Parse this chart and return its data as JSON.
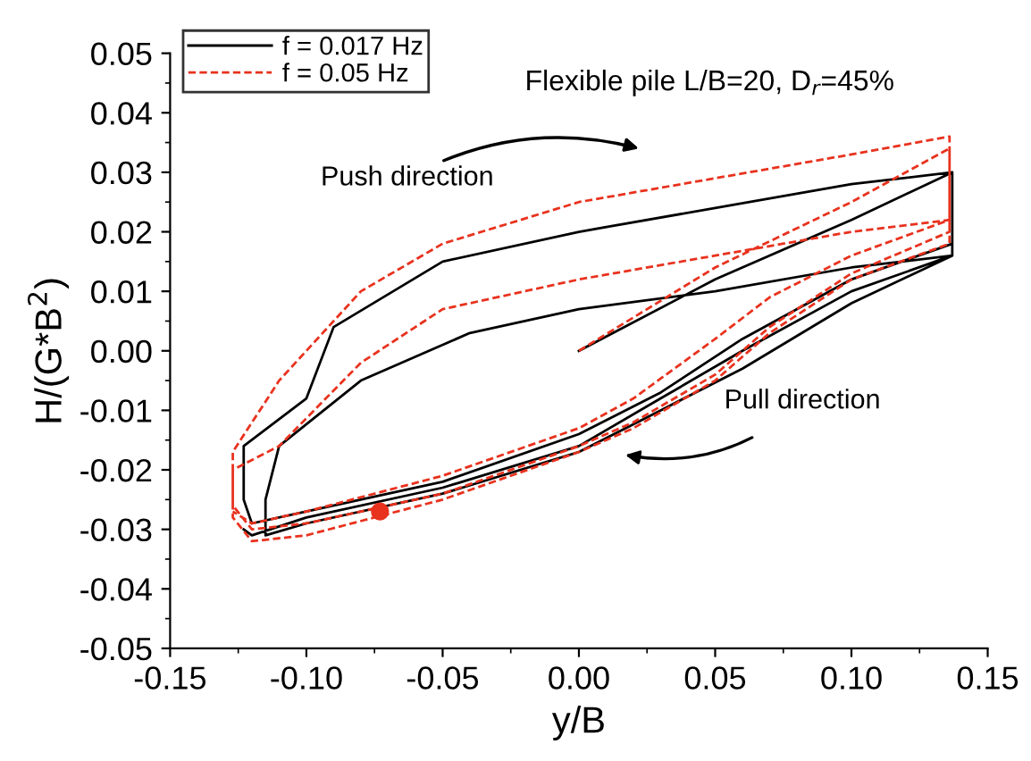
{
  "chart_data": {
    "type": "line",
    "xlabel": "y/B",
    "ylabel": "H/(G*B$^{2}$)",
    "annotations": [
      "Flexible pile L/B=20, D$_{r}$=45%",
      "Push direction",
      "Pull direction"
    ],
    "xlim": [
      -0.15,
      0.15
    ],
    "xticks": [
      {
        "value": -0.15,
        "label": "-0.15"
      },
      {
        "value": -0.1,
        "label": "-0.10"
      },
      -0.05,
      {
        "value": 0,
        "label": "0.00"
      },
      0.05,
      {
        "value": 0.1,
        "label": "0.10"
      },
      0.15
    ],
    "ylim": [
      -0.05,
      0.05
    ],
    "yticks": [
      -0.05,
      -0.04,
      -0.03,
      -0.02,
      -0.01,
      {
        "value": 0,
        "label": "0.00"
      },
      0.01,
      0.02,
      0.03,
      0.04,
      0.05
    ],
    "grid": false,
    "legend": "top left",
    "marker": "none",
    "series": [
      {
        "name": "f = 0.017 Hz",
        "color": "#000000",
        "line_style": "solid",
        "x": [
          0.0,
          0.05,
          0.1,
          0.137,
          0.137,
          0.1,
          0.06,
          0.03,
          0.0,
          -0.05,
          -0.1,
          -0.12,
          -0.123,
          -0.123,
          -0.1,
          -0.09,
          -0.05,
          0.0,
          0.05,
          0.1,
          0.137,
          0.137,
          0.1,
          0.06,
          0.03,
          0.0,
          -0.05,
          -0.1,
          -0.115,
          -0.115,
          -0.11,
          -0.08,
          -0.04,
          0.0,
          0.05,
          0.1,
          0.137,
          0.137,
          0.1,
          0.06,
          0.03,
          0.0,
          -0.05,
          -0.1,
          -0.12,
          -0.123
        ],
        "values": [
          0.0,
          0.012,
          0.022,
          0.03,
          0.018,
          0.012,
          0.002,
          -0.007,
          -0.014,
          -0.022,
          -0.027,
          -0.029,
          -0.025,
          -0.016,
          -0.008,
          0.004,
          0.015,
          0.02,
          0.024,
          0.028,
          0.03,
          0.016,
          0.008,
          -0.003,
          -0.01,
          -0.017,
          -0.024,
          -0.029,
          -0.031,
          -0.025,
          -0.016,
          -0.005,
          0.003,
          0.007,
          0.01,
          0.014,
          0.016,
          0.016,
          0.01,
          0.0,
          -0.008,
          -0.016,
          -0.023,
          -0.028,
          -0.031,
          -0.03
        ]
      },
      {
        "name": "f = 0.05 Hz",
        "color": "#e8321e",
        "line_style": "dashed",
        "x": [
          0.0,
          0.05,
          0.1,
          0.136,
          0.136,
          0.1,
          0.07,
          0.05,
          0.02,
          0.0,
          -0.05,
          -0.1,
          -0.12,
          -0.127,
          -0.127,
          -0.11,
          -0.08,
          -0.05,
          0.0,
          0.05,
          0.1,
          0.136,
          0.136,
          0.1,
          0.07,
          0.05,
          0.02,
          0.0,
          -0.05,
          -0.1,
          -0.12,
          -0.127,
          -0.127,
          -0.11,
          -0.08,
          -0.05,
          0.0,
          0.05,
          0.1,
          0.136,
          0.136,
          0.1,
          0.07,
          0.05,
          0.02,
          0.0,
          -0.05,
          -0.1,
          -0.12,
          -0.127
        ],
        "values": [
          0.0,
          0.014,
          0.025,
          0.034,
          0.02,
          0.013,
          0.004,
          -0.004,
          -0.012,
          -0.016,
          -0.024,
          -0.029,
          -0.03,
          -0.026,
          -0.017,
          -0.005,
          0.01,
          0.018,
          0.025,
          0.029,
          0.033,
          0.036,
          0.018,
          0.012,
          0.003,
          -0.005,
          -0.013,
          -0.017,
          -0.025,
          -0.031,
          -0.032,
          -0.028,
          -0.02,
          -0.016,
          -0.002,
          0.007,
          0.012,
          0.016,
          0.02,
          0.022,
          0.022,
          0.016,
          0.009,
          0.002,
          -0.008,
          -0.013,
          -0.021,
          -0.027,
          -0.029,
          -0.027
        ]
      },
      {
        "type": "scatter",
        "color": "#e8321e",
        "marker": "circle",
        "x": [
          -0.073
        ],
        "values": [
          -0.027
        ]
      }
    ]
  }
}
